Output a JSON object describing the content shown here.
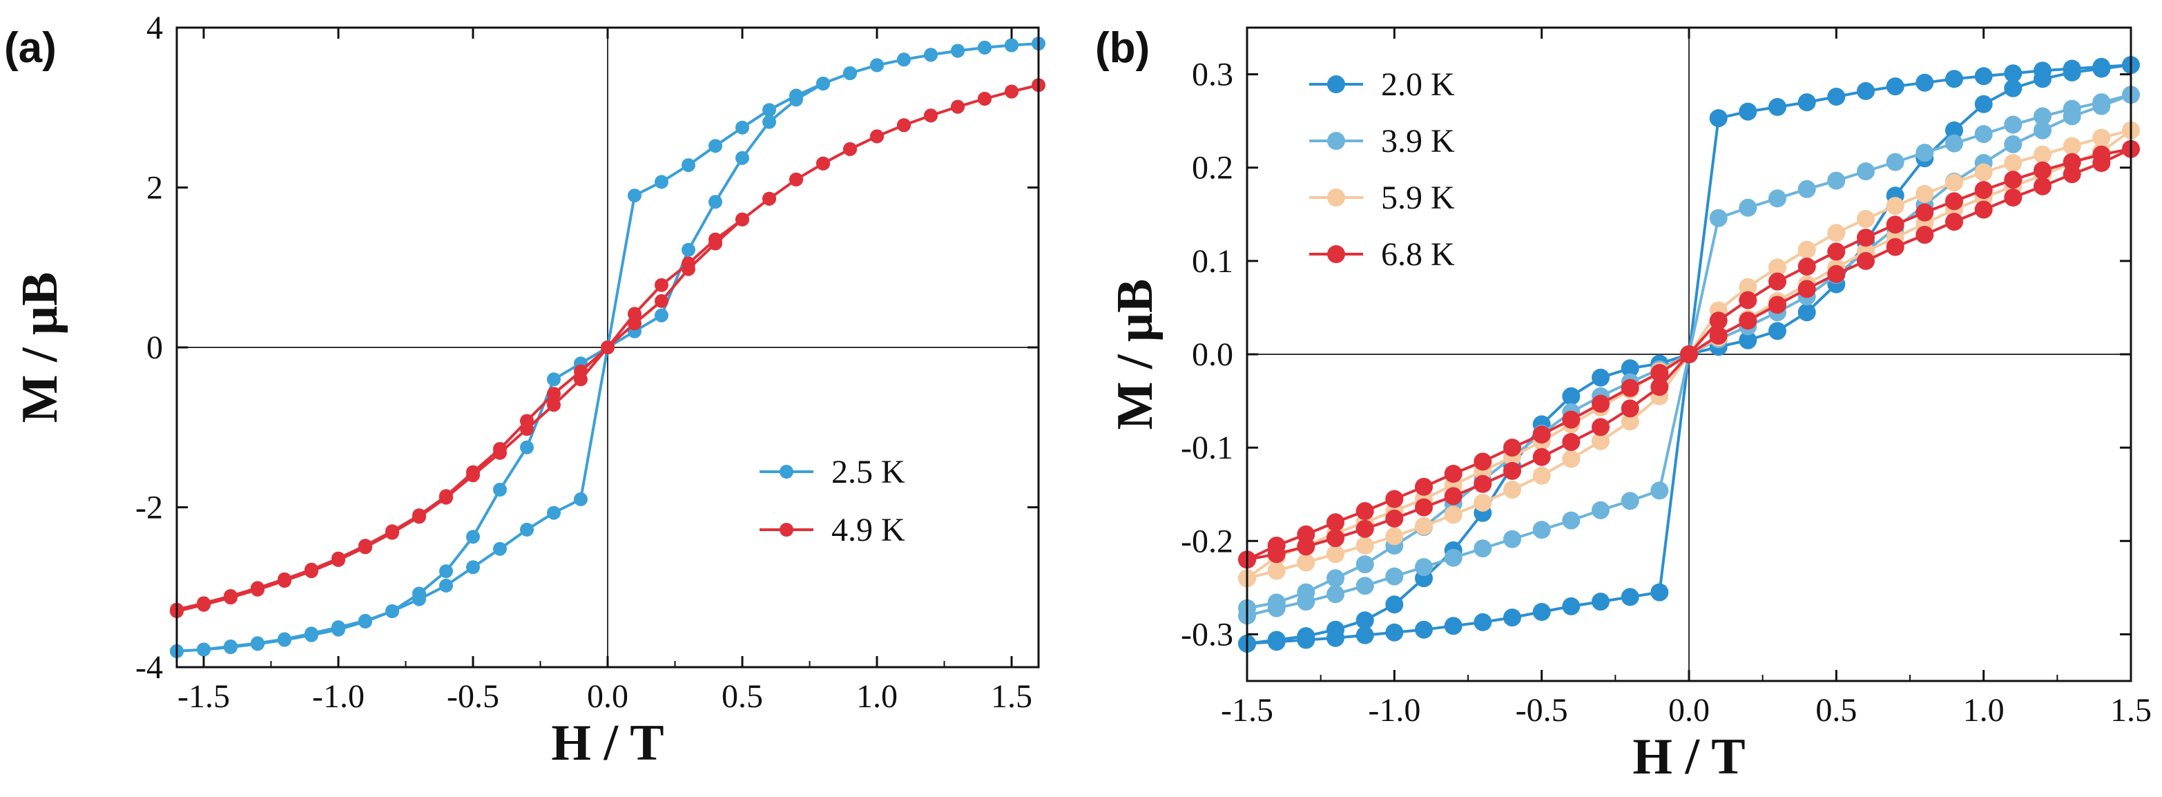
{
  "figure": {
    "panels": [
      "(a)",
      "(b)"
    ]
  },
  "chart_data": [
    {
      "type": "line",
      "panel": "(a)",
      "xlabel": "H / T",
      "ylabel": "M / μB",
      "xlim": [
        -1.6,
        1.6
      ],
      "ylim": [
        -4,
        4
      ],
      "xticks": [
        "-1.5",
        "-1.0",
        "-0.5",
        "0.0",
        "0.5",
        "1.0",
        "1.5"
      ],
      "yticks": [
        "-4",
        "-2",
        "0",
        "2",
        "4"
      ],
      "legend_position": "bottom-right",
      "series": [
        {
          "name": "2.5 K",
          "color": "#3aa0d8",
          "x": [
            -1.6,
            -1.5,
            -1.4,
            -1.3,
            -1.2,
            -1.1,
            -1.0,
            -0.9,
            -0.8,
            -0.7,
            -0.6,
            -0.5,
            -0.4,
            -0.3,
            -0.2,
            -0.1,
            0.0,
            0.1,
            0.2,
            0.3,
            0.4,
            0.5,
            0.6,
            0.7,
            0.8,
            0.9,
            1.0,
            1.1,
            1.2,
            1.3,
            1.4,
            1.5,
            1.6,
            1.5,
            1.4,
            1.3,
            1.2,
            1.1,
            1.0,
            0.9,
            0.8,
            0.7,
            0.6,
            0.5,
            0.4,
            0.3,
            0.2,
            0.1,
            0.0,
            -0.1,
            -0.2,
            -0.3,
            -0.4,
            -0.5,
            -0.6,
            -0.7,
            -0.8,
            -0.9,
            -1.0,
            -1.1,
            -1.2,
            -1.3,
            -1.4,
            -1.5,
            -1.6
          ],
          "y": [
            -3.8,
            -3.78,
            -3.74,
            -3.7,
            -3.65,
            -3.58,
            -3.5,
            -3.42,
            -3.3,
            -3.15,
            -2.98,
            -2.75,
            -2.52,
            -2.28,
            -2.07,
            -1.9,
            0.0,
            0.2,
            0.4,
            1.22,
            1.82,
            2.37,
            2.82,
            3.1,
            3.3,
            3.43,
            3.53,
            3.6,
            3.66,
            3.71,
            3.75,
            3.78,
            3.8,
            3.78,
            3.75,
            3.71,
            3.66,
            3.6,
            3.53,
            3.43,
            3.3,
            3.15,
            2.97,
            2.75,
            2.52,
            2.28,
            2.07,
            1.9,
            0.0,
            -0.2,
            -0.4,
            -1.25,
            -1.78,
            -2.37,
            -2.8,
            -3.08,
            -3.3,
            -3.43,
            -3.53,
            -3.6,
            -3.66,
            -3.71,
            -3.75,
            -3.78,
            -3.8
          ]
        },
        {
          "name": "4.9 K",
          "color": "#e0303a",
          "x": [
            -1.6,
            -1.5,
            -1.4,
            -1.3,
            -1.2,
            -1.1,
            -1.0,
            -0.9,
            -0.8,
            -0.7,
            -0.6,
            -0.5,
            -0.4,
            -0.3,
            -0.2,
            -0.1,
            0.0,
            0.1,
            0.2,
            0.3,
            0.4,
            0.5,
            0.6,
            0.7,
            0.8,
            0.9,
            1.0,
            1.1,
            1.2,
            1.3,
            1.4,
            1.5,
            1.6,
            1.5,
            1.4,
            1.3,
            1.2,
            1.1,
            1.0,
            0.9,
            0.8,
            0.7,
            0.6,
            0.5,
            0.4,
            0.3,
            0.2,
            0.1,
            0.0,
            -0.1,
            -0.2,
            -0.3,
            -0.4,
            -0.5,
            -0.6,
            -0.7,
            -0.8,
            -0.9,
            -1.0,
            -1.1,
            -1.2,
            -1.3,
            -1.4,
            -1.5,
            -1.6
          ],
          "y": [
            -3.3,
            -3.22,
            -3.13,
            -3.03,
            -2.92,
            -2.8,
            -2.66,
            -2.5,
            -2.32,
            -2.12,
            -1.88,
            -1.6,
            -1.32,
            -1.02,
            -0.72,
            -0.4,
            0.0,
            0.3,
            0.58,
            0.98,
            1.3,
            1.6,
            1.86,
            2.1,
            2.3,
            2.48,
            2.64,
            2.78,
            2.9,
            3.01,
            3.11,
            3.2,
            3.28,
            3.2,
            3.11,
            3.01,
            2.9,
            2.78,
            2.64,
            2.48,
            2.3,
            2.1,
            1.86,
            1.6,
            1.35,
            1.05,
            0.78,
            0.42,
            0.0,
            -0.3,
            -0.58,
            -0.92,
            -1.27,
            -1.56,
            -1.86,
            -2.1,
            -2.3,
            -2.48,
            -2.64,
            -2.78,
            -2.9,
            -3.01,
            -3.11,
            -3.2,
            -3.28
          ]
        }
      ]
    },
    {
      "type": "line",
      "panel": "(b)",
      "xlabel": "H / T",
      "ylabel": "M / μB",
      "xlim": [
        -1.5,
        1.5
      ],
      "ylim": [
        -0.35,
        0.35
      ],
      "xticks": [
        "-1.5",
        "-1.0",
        "-0.5",
        "0.0",
        "0.5",
        "1.0",
        "1.5"
      ],
      "yticks": [
        "-0.3",
        "-0.2",
        "-0.1",
        "0.0",
        "0.1",
        "0.2",
        "0.3"
      ],
      "legend_position": "top-left",
      "series": [
        {
          "name": "2.0 K",
          "color": "#2a8fd0",
          "x": [
            -1.5,
            -1.4,
            -1.3,
            -1.2,
            -1.1,
            -1.0,
            -0.9,
            -0.8,
            -0.7,
            -0.6,
            -0.5,
            -0.4,
            -0.3,
            -0.2,
            -0.1,
            0.0,
            0.1,
            0.2,
            0.3,
            0.4,
            0.5,
            0.6,
            0.7,
            0.8,
            0.9,
            1.0,
            1.1,
            1.2,
            1.3,
            1.4,
            1.5,
            1.4,
            1.3,
            1.2,
            1.1,
            1.0,
            0.9,
            0.8,
            0.7,
            0.6,
            0.5,
            0.4,
            0.3,
            0.2,
            0.1,
            0.0,
            -0.1,
            -0.2,
            -0.3,
            -0.4,
            -0.5,
            -0.6,
            -0.7,
            -0.8,
            -0.9,
            -1.0,
            -1.1,
            -1.2,
            -1.3,
            -1.4,
            -1.5
          ],
          "y": [
            -0.31,
            -0.308,
            -0.306,
            -0.304,
            -0.301,
            -0.298,
            -0.295,
            -0.291,
            -0.287,
            -0.282,
            -0.276,
            -0.27,
            -0.265,
            -0.26,
            -0.255,
            0.0,
            0.008,
            0.015,
            0.025,
            0.045,
            0.075,
            0.12,
            0.17,
            0.21,
            0.24,
            0.268,
            0.285,
            0.295,
            0.302,
            0.306,
            0.31,
            0.308,
            0.306,
            0.304,
            0.301,
            0.298,
            0.295,
            0.291,
            0.287,
            0.282,
            0.276,
            0.27,
            0.265,
            0.26,
            0.253,
            0.0,
            -0.01,
            -0.015,
            -0.025,
            -0.045,
            -0.075,
            -0.12,
            -0.17,
            -0.21,
            -0.24,
            -0.268,
            -0.285,
            -0.295,
            -0.302,
            -0.306,
            -0.31
          ]
        },
        {
          "name": "3.9 K",
          "color": "#6cb4dc",
          "x": [
            -1.5,
            -1.4,
            -1.3,
            -1.2,
            -1.1,
            -1.0,
            -0.9,
            -0.8,
            -0.7,
            -0.6,
            -0.5,
            -0.4,
            -0.3,
            -0.2,
            -0.1,
            0.0,
            0.1,
            0.2,
            0.3,
            0.4,
            0.5,
            0.6,
            0.7,
            0.8,
            0.9,
            1.0,
            1.1,
            1.2,
            1.3,
            1.4,
            1.5,
            1.4,
            1.3,
            1.2,
            1.1,
            1.0,
            0.9,
            0.8,
            0.7,
            0.6,
            0.5,
            0.4,
            0.3,
            0.2,
            0.1,
            0.0,
            -0.1,
            -0.2,
            -0.3,
            -0.4,
            -0.5,
            -0.6,
            -0.7,
            -0.8,
            -0.9,
            -1.0,
            -1.1,
            -1.2,
            -1.3,
            -1.4,
            -1.5
          ],
          "y": [
            -0.28,
            -0.272,
            -0.265,
            -0.257,
            -0.248,
            -0.238,
            -0.228,
            -0.218,
            -0.208,
            -0.198,
            -0.188,
            -0.178,
            -0.167,
            -0.157,
            -0.146,
            0.0,
            0.016,
            0.03,
            0.045,
            0.062,
            0.085,
            0.11,
            0.135,
            0.16,
            0.185,
            0.205,
            0.225,
            0.24,
            0.255,
            0.266,
            0.278,
            0.27,
            0.263,
            0.255,
            0.246,
            0.236,
            0.226,
            0.216,
            0.206,
            0.196,
            0.186,
            0.177,
            0.167,
            0.157,
            0.146,
            0.0,
            -0.016,
            -0.03,
            -0.045,
            -0.062,
            -0.085,
            -0.11,
            -0.135,
            -0.16,
            -0.185,
            -0.205,
            -0.225,
            -0.24,
            -0.255,
            -0.266,
            -0.272
          ]
        },
        {
          "name": "5.9 K",
          "color": "#f6c99e",
          "x": [
            -1.5,
            -1.4,
            -1.3,
            -1.2,
            -1.1,
            -1.0,
            -0.9,
            -0.8,
            -0.7,
            -0.6,
            -0.5,
            -0.4,
            -0.3,
            -0.2,
            -0.1,
            0.0,
            0.1,
            0.2,
            0.3,
            0.4,
            0.5,
            0.6,
            0.7,
            0.8,
            0.9,
            1.0,
            1.1,
            1.2,
            1.3,
            1.4,
            1.5,
            1.4,
            1.3,
            1.2,
            1.1,
            1.0,
            0.9,
            0.8,
            0.7,
            0.6,
            0.5,
            0.4,
            0.3,
            0.2,
            0.1,
            0.0,
            -0.1,
            -0.2,
            -0.3,
            -0.4,
            -0.5,
            -0.6,
            -0.7,
            -0.8,
            -0.9,
            -1.0,
            -1.1,
            -1.2,
            -1.3,
            -1.4,
            -1.5
          ],
          "y": [
            -0.24,
            -0.232,
            -0.223,
            -0.214,
            -0.205,
            -0.195,
            -0.184,
            -0.172,
            -0.159,
            -0.145,
            -0.13,
            -0.112,
            -0.093,
            -0.072,
            -0.045,
            0.0,
            0.018,
            0.038,
            0.057,
            0.075,
            0.093,
            0.11,
            0.125,
            0.14,
            0.155,
            0.168,
            0.18,
            0.192,
            0.205,
            0.217,
            0.24,
            0.232,
            0.223,
            0.214,
            0.205,
            0.195,
            0.184,
            0.172,
            0.159,
            0.145,
            0.13,
            0.112,
            0.093,
            0.072,
            0.047,
            0.0,
            -0.018,
            -0.038,
            -0.057,
            -0.075,
            -0.093,
            -0.11,
            -0.125,
            -0.14,
            -0.155,
            -0.168,
            -0.18,
            -0.192,
            -0.205,
            -0.217,
            -0.24
          ]
        },
        {
          "name": "6.8 K",
          "color": "#e0303a",
          "x": [
            -1.5,
            -1.4,
            -1.3,
            -1.2,
            -1.1,
            -1.0,
            -0.9,
            -0.8,
            -0.7,
            -0.6,
            -0.5,
            -0.4,
            -0.3,
            -0.2,
            -0.1,
            0.0,
            0.1,
            0.2,
            0.3,
            0.4,
            0.5,
            0.6,
            0.7,
            0.8,
            0.9,
            1.0,
            1.1,
            1.2,
            1.3,
            1.4,
            1.5,
            1.4,
            1.3,
            1.2,
            1.1,
            1.0,
            0.9,
            0.8,
            0.7,
            0.6,
            0.5,
            0.4,
            0.3,
            0.2,
            0.1,
            0.0,
            -0.1,
            -0.2,
            -0.3,
            -0.4,
            -0.5,
            -0.6,
            -0.7,
            -0.8,
            -0.9,
            -1.0,
            -1.1,
            -1.2,
            -1.3,
            -1.4,
            -1.5
          ],
          "y": [
            -0.22,
            -0.214,
            -0.206,
            -0.197,
            -0.187,
            -0.176,
            -0.164,
            -0.152,
            -0.139,
            -0.125,
            -0.11,
            -0.094,
            -0.078,
            -0.058,
            -0.035,
            0.0,
            0.02,
            0.036,
            0.053,
            0.07,
            0.086,
            0.1,
            0.115,
            0.128,
            0.142,
            0.155,
            0.168,
            0.18,
            0.193,
            0.205,
            0.22,
            0.214,
            0.206,
            0.197,
            0.187,
            0.176,
            0.164,
            0.152,
            0.139,
            0.125,
            0.11,
            0.094,
            0.078,
            0.058,
            0.036,
            0.0,
            -0.02,
            -0.036,
            -0.053,
            -0.07,
            -0.086,
            -0.1,
            -0.115,
            -0.128,
            -0.142,
            -0.155,
            -0.168,
            -0.18,
            -0.193,
            -0.205,
            -0.22
          ]
        }
      ]
    }
  ]
}
